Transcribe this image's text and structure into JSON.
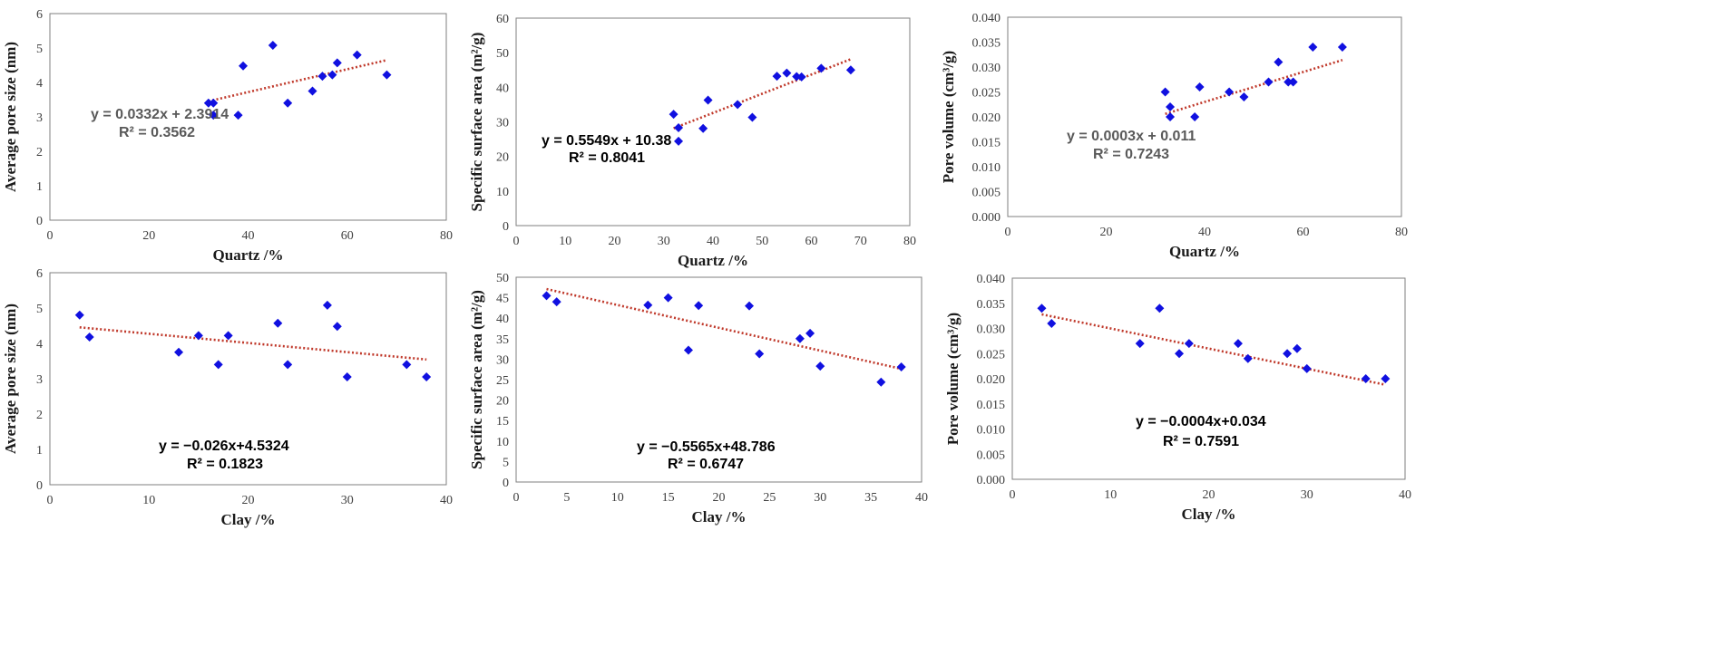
{
  "colors": {
    "point": "#1010e0",
    "trend": "#c0392b",
    "frame": "#7f7f7f",
    "text": "#404040",
    "eq_gray": "#595959",
    "eq_black": "#000000"
  },
  "chart_data": [
    {
      "type": "scatter",
      "id": "q-aps",
      "xlabel": "Quartz /%",
      "ylabel": "Average pore size (nm)",
      "xlim": [
        0,
        80
      ],
      "ylim": [
        0,
        6
      ],
      "xticks": [
        "0",
        "20",
        "40",
        "60",
        "80"
      ],
      "yticks": [
        "0",
        "1",
        "2",
        "3",
        "4",
        "5",
        "6"
      ],
      "points": [
        [
          32,
          3.4
        ],
        [
          33,
          3.05
        ],
        [
          33,
          3.4
        ],
        [
          38,
          3.05
        ],
        [
          39,
          4.48
        ],
        [
          45,
          5.08
        ],
        [
          48,
          3.4
        ],
        [
          53,
          3.75
        ],
        [
          55,
          4.18
        ],
        [
          57,
          4.22
        ],
        [
          58,
          4.57
        ],
        [
          62,
          4.8
        ],
        [
          68,
          4.22
        ]
      ],
      "trend": {
        "slope": 0.0332,
        "intercept": 2.3914,
        "x_range": [
          32,
          68
        ]
      },
      "equation": "y = 0.0332x + 2.3914",
      "r2": "R² = 0.3562",
      "eq_color": "gray"
    },
    {
      "type": "scatter",
      "id": "q-ssa",
      "xlabel": "Quartz /%",
      "ylabel": "Specific surface area (m²/g)",
      "xlim": [
        0,
        80
      ],
      "ylim": [
        0,
        60
      ],
      "xticks": [
        "0",
        "10",
        "20",
        "30",
        "40",
        "50",
        "60",
        "70",
        "80"
      ],
      "yticks": [
        "0",
        "10",
        "20",
        "30",
        "40",
        "50",
        "60"
      ],
      "points": [
        [
          32,
          32.2
        ],
        [
          33,
          24.4
        ],
        [
          33,
          28.3
        ],
        [
          38,
          28.1
        ],
        [
          39,
          36.3
        ],
        [
          45,
          35.0
        ],
        [
          48,
          31.3
        ],
        [
          53,
          43.2
        ],
        [
          55,
          44.1
        ],
        [
          57,
          43.1
        ],
        [
          58,
          43.0
        ],
        [
          62,
          45.5
        ],
        [
          68,
          45.0
        ]
      ],
      "trend": {
        "slope": 0.5549,
        "intercept": 10.38,
        "x_range": [
          32,
          68
        ]
      },
      "equation": "y = 0.5549x + 10.38",
      "r2": "R² = 0.8041",
      "eq_color": "black"
    },
    {
      "type": "scatter",
      "id": "q-pv",
      "xlabel": "Quartz /%",
      "ylabel": "Pore volume (cm³/g)",
      "xlim": [
        0,
        80
      ],
      "ylim": [
        0,
        0.04
      ],
      "xticks": [
        "0",
        "20",
        "40",
        "60",
        "80"
      ],
      "yticks": [
        "0.000",
        "0.005",
        "0.010",
        "0.015",
        "0.020",
        "0.025",
        "0.030",
        "0.035",
        "0.040"
      ],
      "points": [
        [
          32,
          0.025
        ],
        [
          33,
          0.022
        ],
        [
          33,
          0.02
        ],
        [
          38,
          0.02
        ],
        [
          39,
          0.026
        ],
        [
          45,
          0.025
        ],
        [
          48,
          0.024
        ],
        [
          53,
          0.027
        ],
        [
          55,
          0.031
        ],
        [
          57,
          0.027
        ],
        [
          58,
          0.027
        ],
        [
          62,
          0.034
        ],
        [
          68,
          0.034
        ]
      ],
      "trend": {
        "slope": 0.0003,
        "intercept": 0.011,
        "x_range": [
          32,
          68
        ]
      },
      "equation": "y = 0.0003x + 0.011",
      "r2": "R² = 0.7243",
      "eq_color": "gray"
    },
    {
      "type": "scatter",
      "id": "c-aps",
      "xlabel": "Clay /%",
      "ylabel": "Average pore size (nm)",
      "xlim": [
        0,
        40
      ],
      "ylim": [
        0,
        6
      ],
      "xticks": [
        "0",
        "10",
        "20",
        "30",
        "40"
      ],
      "yticks": [
        "0",
        "1",
        "2",
        "3",
        "4",
        "5",
        "6"
      ],
      "points": [
        [
          3,
          4.8
        ],
        [
          4,
          4.18
        ],
        [
          13,
          3.75
        ],
        [
          15,
          4.22
        ],
        [
          17,
          3.4
        ],
        [
          18,
          4.22
        ],
        [
          23,
          4.57
        ],
        [
          24,
          3.4
        ],
        [
          28,
          5.08
        ],
        [
          29,
          4.48
        ],
        [
          30,
          3.05
        ],
        [
          36,
          3.4
        ],
        [
          38,
          3.05
        ]
      ],
      "trend": {
        "slope": -0.026,
        "intercept": 4.5324,
        "x_range": [
          3,
          38
        ]
      },
      "equation": "y = −0.026x+4.5324",
      "r2": "R² = 0.1823",
      "eq_color": "black"
    },
    {
      "type": "scatter",
      "id": "c-ssa",
      "xlabel": "Clay /%",
      "ylabel": "Specific surface area (m²/g)",
      "xlim": [
        0,
        40
      ],
      "ylim": [
        0,
        50
      ],
      "xticks": [
        "0",
        "5",
        "10",
        "15",
        "20",
        "25",
        "30",
        "35",
        "40"
      ],
      "yticks": [
        "0",
        "5",
        "10",
        "15",
        "20",
        "25",
        "30",
        "35",
        "40",
        "45",
        "50"
      ],
      "points": [
        [
          3,
          45.5
        ],
        [
          4,
          44.0
        ],
        [
          13,
          43.2
        ],
        [
          15,
          45.0
        ],
        [
          17,
          32.2
        ],
        [
          18,
          43.1
        ],
        [
          23,
          43.0
        ],
        [
          24,
          31.3
        ],
        [
          28,
          35.0
        ],
        [
          29,
          36.3
        ],
        [
          30,
          28.3
        ],
        [
          36,
          24.4
        ],
        [
          38,
          28.1
        ]
      ],
      "trend": {
        "slope": -0.5565,
        "intercept": 48.786,
        "x_range": [
          3,
          38
        ]
      },
      "equation": "y = −0.5565x+48.786",
      "r2": "R² = 0.6747",
      "eq_color": "black"
    },
    {
      "type": "scatter",
      "id": "c-pv",
      "xlabel": "Clay /%",
      "ylabel": "Pore volume (cm³/g)",
      "xlim": [
        0,
        40
      ],
      "ylim": [
        0,
        0.04
      ],
      "xticks": [
        "0",
        "10",
        "20",
        "30",
        "40"
      ],
      "yticks": [
        "0.000",
        "0.005",
        "0.010",
        "0.015",
        "0.020",
        "0.025",
        "0.030",
        "0.035",
        "0.040"
      ],
      "points": [
        [
          3,
          0.034
        ],
        [
          4,
          0.031
        ],
        [
          13,
          0.027
        ],
        [
          15,
          0.034
        ],
        [
          17,
          0.025
        ],
        [
          18,
          0.027
        ],
        [
          23,
          0.027
        ],
        [
          24,
          0.024
        ],
        [
          28,
          0.025
        ],
        [
          29,
          0.026
        ],
        [
          30,
          0.022
        ],
        [
          36,
          0.02
        ],
        [
          38,
          0.02
        ]
      ],
      "trend": {
        "slope": -0.0004,
        "intercept": 0.034,
        "x_range": [
          3,
          38
        ]
      },
      "equation": "y = −0.0004x+0.034",
      "r2": "R² = 0.7591",
      "eq_color": "black"
    }
  ]
}
